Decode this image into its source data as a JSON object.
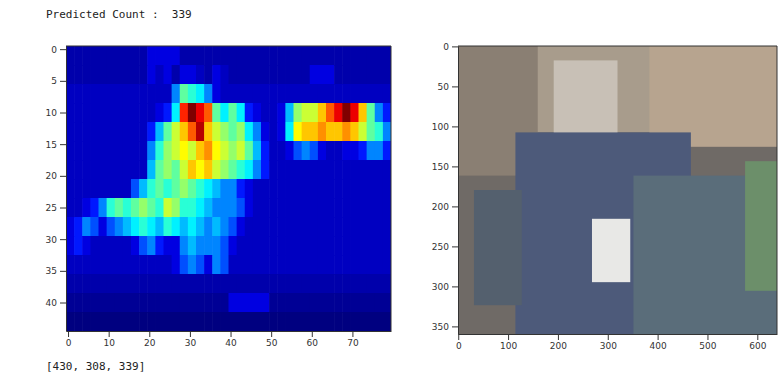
{
  "header": {
    "text": "Predicted Count :  339"
  },
  "footer": {
    "text": "[430, 308, 339]"
  },
  "chart_data": [
    {
      "type": "heatmap",
      "xlim": [
        -0.5,
        79.5
      ],
      "ylim": [
        44.5,
        -0.5
      ],
      "xticks": [
        0,
        10,
        20,
        30,
        40,
        50,
        60,
        70
      ],
      "yticks": [
        0,
        5,
        10,
        15,
        20,
        25,
        30,
        35,
        40
      ],
      "cells": [
        [
          0.1,
          0.1,
          0.1,
          0.1,
          0.1,
          0.1,
          0.1,
          0.1,
          0.1,
          0.1,
          0.15,
          0.15,
          0.15,
          0.15,
          0.1,
          0.1,
          0.1,
          0.1,
          0.1,
          0.1,
          0.1,
          0.1,
          0.1,
          0.1,
          0.1,
          0.1,
          0.1,
          0.1,
          0.1,
          0.1,
          0.1,
          0.1,
          0.1,
          0.1,
          0.1,
          0.1,
          0.1,
          0.1,
          0.1,
          0.1
        ],
        [
          0.1,
          0.1,
          0.1,
          0.1,
          0.1,
          0.1,
          0.1,
          0.1,
          0.1,
          0.1,
          0.15,
          0.12,
          0.15,
          0.1,
          0.15,
          0.15,
          0.12,
          0.1,
          0.15,
          0.12,
          0.1,
          0.1,
          0.1,
          0.1,
          0.1,
          0.1,
          0.1,
          0.1,
          0.1,
          0.1,
          0.15,
          0.15,
          0.15,
          0.1,
          0.1,
          0.1,
          0.1,
          0.1,
          0.1,
          0.1
        ],
        [
          0.12,
          0.12,
          0.12,
          0.12,
          0.12,
          0.12,
          0.12,
          0.12,
          0.12,
          0.12,
          0.12,
          0.12,
          0.12,
          0.3,
          0.5,
          0.45,
          0.4,
          0.3,
          0.15,
          0.12,
          0.12,
          0.12,
          0.12,
          0.12,
          0.12,
          0.12,
          0.12,
          0.12,
          0.12,
          0.12,
          0.12,
          0.12,
          0.12,
          0.12,
          0.12,
          0.12,
          0.12,
          0.12,
          0.12,
          0.12
        ],
        [
          0.12,
          0.12,
          0.12,
          0.12,
          0.12,
          0.12,
          0.12,
          0.12,
          0.12,
          0.12,
          0.12,
          0.15,
          0.2,
          0.4,
          0.85,
          1.0,
          0.9,
          0.8,
          0.5,
          0.4,
          0.5,
          0.4,
          0.2,
          0.15,
          0.12,
          0.12,
          0.15,
          0.35,
          0.55,
          0.6,
          0.6,
          0.7,
          0.8,
          0.9,
          1.0,
          0.9,
          0.7,
          0.5,
          0.3,
          0.2
        ],
        [
          0.12,
          0.12,
          0.12,
          0.12,
          0.12,
          0.12,
          0.12,
          0.12,
          0.12,
          0.12,
          0.2,
          0.35,
          0.5,
          0.6,
          0.7,
          0.8,
          0.95,
          0.7,
          0.6,
          0.55,
          0.5,
          0.55,
          0.4,
          0.3,
          0.15,
          0.12,
          0.15,
          0.4,
          0.65,
          0.7,
          0.7,
          0.75,
          0.7,
          0.7,
          0.75,
          0.7,
          0.6,
          0.5,
          0.45,
          0.3
        ],
        [
          0.12,
          0.12,
          0.12,
          0.12,
          0.12,
          0.12,
          0.12,
          0.12,
          0.12,
          0.12,
          0.3,
          0.45,
          0.55,
          0.6,
          0.65,
          0.6,
          0.7,
          0.75,
          0.65,
          0.6,
          0.55,
          0.6,
          0.5,
          0.35,
          0.2,
          0.12,
          0.12,
          0.15,
          0.25,
          0.3,
          0.25,
          0.15,
          0.12,
          0.12,
          0.15,
          0.15,
          0.2,
          0.3,
          0.3,
          0.2
        ],
        [
          0.12,
          0.12,
          0.12,
          0.12,
          0.12,
          0.12,
          0.12,
          0.12,
          0.12,
          0.12,
          0.35,
          0.5,
          0.55,
          0.5,
          0.6,
          0.7,
          0.65,
          0.7,
          0.6,
          0.55,
          0.5,
          0.45,
          0.4,
          0.3,
          0.2,
          0.12,
          0.12,
          0.12,
          0.12,
          0.12,
          0.12,
          0.12,
          0.12,
          0.12,
          0.12,
          0.12,
          0.12,
          0.12,
          0.12,
          0.12
        ],
        [
          0.12,
          0.12,
          0.12,
          0.12,
          0.12,
          0.12,
          0.12,
          0.12,
          0.25,
          0.35,
          0.45,
          0.5,
          0.45,
          0.5,
          0.55,
          0.5,
          0.45,
          0.4,
          0.35,
          0.3,
          0.3,
          0.2,
          0.15,
          0.12,
          0.12,
          0.12,
          0.12,
          0.12,
          0.12,
          0.12,
          0.12,
          0.12,
          0.12,
          0.12,
          0.12,
          0.12,
          0.12,
          0.12,
          0.12,
          0.12
        ],
        [
          0.12,
          0.12,
          0.15,
          0.2,
          0.3,
          0.45,
          0.5,
          0.45,
          0.5,
          0.55,
          0.5,
          0.45,
          0.6,
          0.55,
          0.45,
          0.45,
          0.4,
          0.35,
          0.3,
          0.3,
          0.3,
          0.25,
          0.15,
          0.12,
          0.12,
          0.12,
          0.12,
          0.12,
          0.12,
          0.12,
          0.12,
          0.12,
          0.12,
          0.12,
          0.12,
          0.12,
          0.12,
          0.12,
          0.12,
          0.12
        ],
        [
          0.15,
          0.2,
          0.3,
          0.25,
          0.15,
          0.25,
          0.3,
          0.35,
          0.4,
          0.45,
          0.4,
          0.35,
          0.45,
          0.4,
          0.35,
          0.4,
          0.35,
          0.3,
          0.35,
          0.3,
          0.25,
          0.15,
          0.12,
          0.12,
          0.12,
          0.12,
          0.12,
          0.12,
          0.12,
          0.12,
          0.12,
          0.12,
          0.12,
          0.12,
          0.12,
          0.12,
          0.12,
          0.12,
          0.12,
          0.12
        ],
        [
          0.15,
          0.2,
          0.15,
          0.12,
          0.12,
          0.12,
          0.12,
          0.12,
          0.15,
          0.25,
          0.3,
          0.2,
          0.15,
          0.15,
          0.3,
          0.35,
          0.3,
          0.3,
          0.3,
          0.25,
          0.15,
          0.12,
          0.12,
          0.12,
          0.12,
          0.12,
          0.12,
          0.12,
          0.12,
          0.12,
          0.12,
          0.12,
          0.12,
          0.12,
          0.12,
          0.12,
          0.12,
          0.12,
          0.12,
          0.12
        ],
        [
          0.12,
          0.12,
          0.12,
          0.12,
          0.12,
          0.12,
          0.12,
          0.12,
          0.12,
          0.12,
          0.12,
          0.12,
          0.12,
          0.15,
          0.25,
          0.3,
          0.25,
          0.15,
          0.3,
          0.25,
          0.12,
          0.12,
          0.12,
          0.12,
          0.12,
          0.12,
          0.12,
          0.12,
          0.12,
          0.12,
          0.12,
          0.12,
          0.12,
          0.12,
          0.12,
          0.12,
          0.12,
          0.12,
          0.12,
          0.12
        ],
        [
          0.1,
          0.1,
          0.1,
          0.1,
          0.1,
          0.1,
          0.1,
          0.1,
          0.1,
          0.1,
          0.1,
          0.1,
          0.1,
          0.1,
          0.1,
          0.1,
          0.1,
          0.1,
          0.1,
          0.1,
          0.1,
          0.1,
          0.1,
          0.1,
          0.1,
          0.1,
          0.1,
          0.1,
          0.1,
          0.1,
          0.1,
          0.1,
          0.1,
          0.1,
          0.1,
          0.1,
          0.1,
          0.1,
          0.1,
          0.1
        ],
        [
          0.08,
          0.08,
          0.08,
          0.08,
          0.08,
          0.08,
          0.08,
          0.08,
          0.08,
          0.08,
          0.08,
          0.08,
          0.08,
          0.08,
          0.08,
          0.08,
          0.08,
          0.08,
          0.08,
          0.08,
          0.15,
          0.15,
          0.15,
          0.15,
          0.15,
          0.08,
          0.08,
          0.08,
          0.08,
          0.08,
          0.08,
          0.08,
          0.08,
          0.08,
          0.08,
          0.08,
          0.08,
          0.08,
          0.08,
          0.08
        ],
        [
          0.06,
          0.06,
          0.06,
          0.06,
          0.06,
          0.06,
          0.06,
          0.06,
          0.06,
          0.06,
          0.06,
          0.06,
          0.06,
          0.06,
          0.06,
          0.06,
          0.06,
          0.06,
          0.06,
          0.06,
          0.06,
          0.06,
          0.06,
          0.06,
          0.06,
          0.06,
          0.06,
          0.06,
          0.06,
          0.06,
          0.06,
          0.06,
          0.06,
          0.06,
          0.06,
          0.06,
          0.06,
          0.06,
          0.06,
          0.06
        ]
      ]
    },
    {
      "type": "image",
      "xlim": [
        -0.5,
        639.5
      ],
      "ylim": [
        359.5,
        -0.5
      ],
      "xticks": [
        0,
        100,
        200,
        300,
        400,
        500,
        600
      ],
      "yticks": [
        0,
        50,
        100,
        150,
        200,
        250,
        300,
        350
      ]
    }
  ]
}
